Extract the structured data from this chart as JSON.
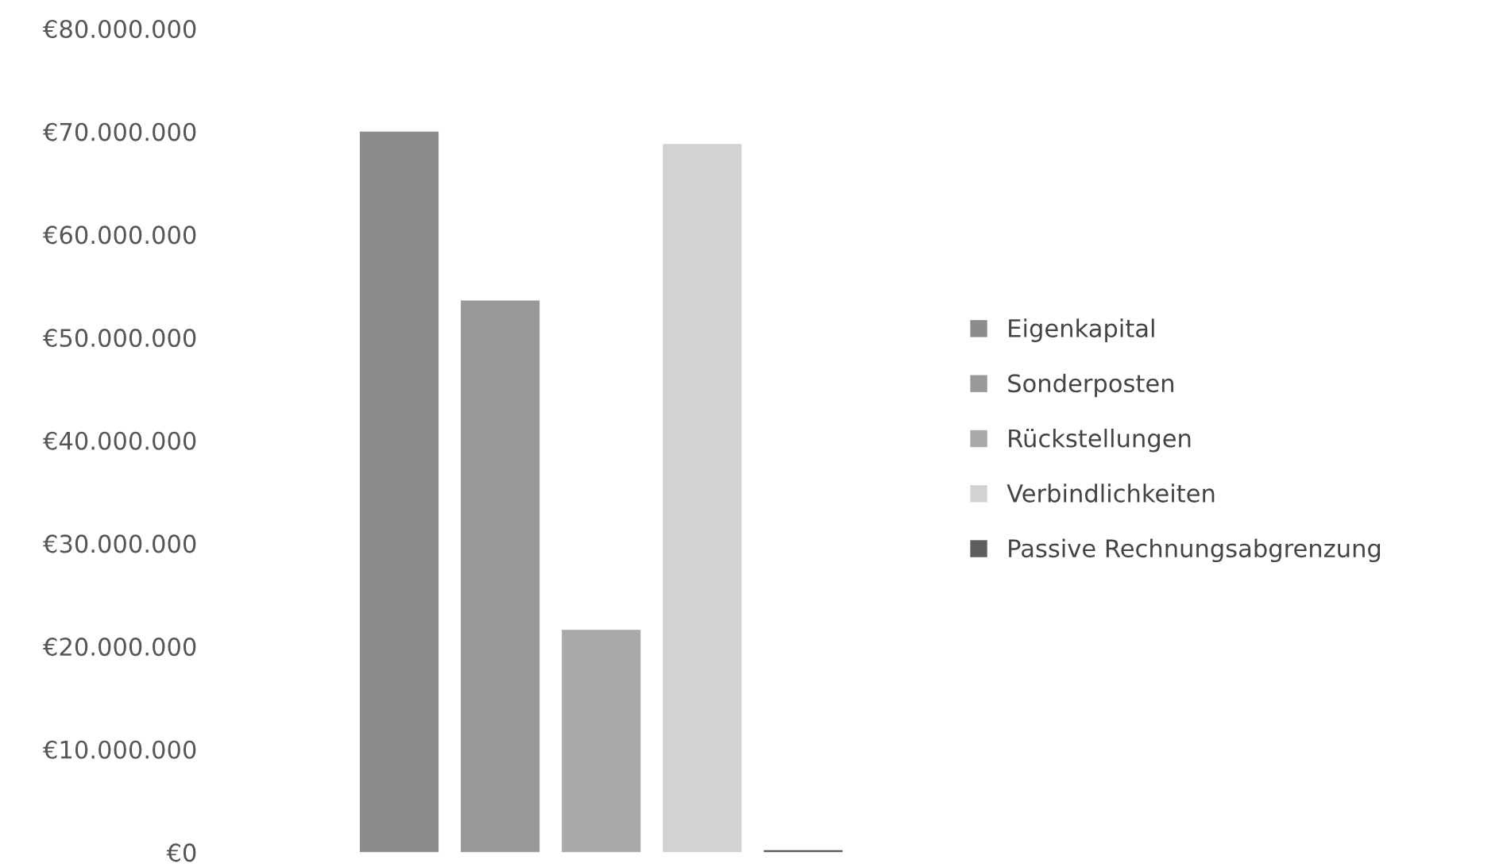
{
  "chart_data": {
    "type": "bar",
    "categories": [
      null
    ],
    "series": [
      {
        "name": "Eigenkapital",
        "color": "#8c8c8c",
        "values": [
          70000000
        ]
      },
      {
        "name": "Sonderposten",
        "color": "#999999",
        "values": [
          53600000
        ]
      },
      {
        "name": "Rückstellungen",
        "color": "#a9a9a9",
        "values": [
          21600000
        ]
      },
      {
        "name": "Verbindlichkeiten",
        "color": "#d2d2d2",
        "values": [
          68800000
        ]
      },
      {
        "name": "Passive Rechnungsabgrenzung",
        "color": "#5e5e5e",
        "values": [
          200000
        ]
      }
    ],
    "ylim": [
      0,
      80000000
    ],
    "yticks": [
      {
        "value": 0,
        "label": "€0"
      },
      {
        "value": 10000000,
        "label": "€10.000.000"
      },
      {
        "value": 20000000,
        "label": "€20.000.000"
      },
      {
        "value": 30000000,
        "label": "€30.000.000"
      },
      {
        "value": 40000000,
        "label": "€40.000.000"
      },
      {
        "value": 50000000,
        "label": "€50.000.000"
      },
      {
        "value": 60000000,
        "label": "€60.000.000"
      },
      {
        "value": 70000000,
        "label": "€70.000.000"
      },
      {
        "value": 80000000,
        "label": "€80.000.000"
      }
    ],
    "grid": false,
    "legend": "right"
  }
}
